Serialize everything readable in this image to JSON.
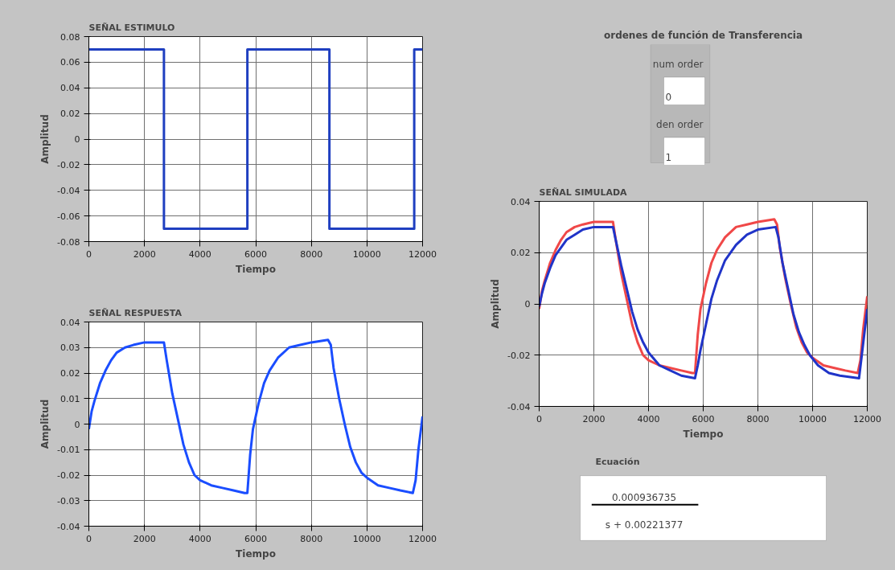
{
  "chart_data": [
    {
      "type": "step",
      "title": "SEÑAL ESTIMULO",
      "xlabel": "Tiempo",
      "ylabel": "Amplitud",
      "xlim": [
        0,
        12000
      ],
      "ylim": [
        -0.08,
        0.08
      ],
      "xticks": [
        0,
        2000,
        4000,
        6000,
        8000,
        10000,
        12000
      ],
      "yticks": [
        -0.08,
        -0.06,
        -0.04,
        -0.02,
        0,
        0.02,
        0.04,
        0.06,
        0.08
      ],
      "grid": true,
      "series": [
        {
          "color": "#1f3fc0",
          "x": [
            0,
            2700,
            2700,
            5700,
            5700,
            8650,
            8650,
            11700,
            11700,
            12000
          ],
          "values": [
            0.07,
            0.07,
            -0.07,
            -0.07,
            0.07,
            0.07,
            -0.07,
            -0.07,
            0.07,
            0.07
          ]
        }
      ]
    },
    {
      "type": "other",
      "title": "ordenes de función de Transferencia",
      "annotations": [
        "num order",
        "0",
        "den order",
        "1"
      ]
    },
    {
      "type": "line",
      "title": "SEÑAL SIMULADA",
      "xlabel": "Tiempo",
      "ylabel": "Amplitud",
      "xlim": [
        0,
        12000
      ],
      "ylim": [
        -0.04,
        0.04
      ],
      "xticks": [
        0,
        2000,
        4000,
        6000,
        8000,
        10000,
        12000
      ],
      "yticks": [
        -0.04,
        -0.02,
        0,
        0.02,
        0.04
      ],
      "grid": true,
      "series": [
        {
          "color": "#f04848",
          "x": [
            0,
            100,
            200,
            400,
            600,
            800,
            1000,
            1300,
            1600,
            2000,
            2400,
            2700,
            2800,
            3000,
            3200,
            3400,
            3600,
            3800,
            4000,
            4400,
            4800,
            5200,
            5600,
            5700,
            5800,
            5900,
            6100,
            6300,
            6500,
            6800,
            7200,
            7600,
            8000,
            8600,
            8700,
            8800,
            9000,
            9200,
            9400,
            9600,
            9800,
            10000,
            10400,
            10800,
            11200,
            11650,
            11750,
            11850,
            12000
          ],
          "values": [
            -0.002,
            0.005,
            0.009,
            0.016,
            0.021,
            0.025,
            0.028,
            0.03,
            0.031,
            0.032,
            0.032,
            0.032,
            0.025,
            0.012,
            0.002,
            -0.008,
            -0.015,
            -0.02,
            -0.022,
            -0.024,
            -0.025,
            -0.026,
            -0.027,
            -0.027,
            -0.012,
            -0.002,
            0.008,
            0.016,
            0.021,
            0.026,
            0.03,
            0.031,
            0.032,
            0.033,
            0.031,
            0.022,
            0.01,
            0.0,
            -0.009,
            -0.015,
            -0.019,
            -0.021,
            -0.024,
            -0.025,
            -0.026,
            -0.027,
            -0.022,
            -0.01,
            0.003
          ]
        },
        {
          "color": "#2034c8",
          "x": [
            0,
            100,
            200,
            400,
            600,
            800,
            1000,
            1300,
            1600,
            2000,
            2400,
            2700,
            2800,
            3000,
            3200,
            3400,
            3600,
            3800,
            4000,
            4400,
            4800,
            5200,
            5700,
            5800,
            5900,
            6100,
            6300,
            6500,
            6800,
            7200,
            7600,
            8000,
            8650,
            8750,
            8900,
            9100,
            9300,
            9500,
            9700,
            9900,
            10200,
            10600,
            11000,
            11700,
            11800,
            11900,
            12000
          ],
          "values": [
            -0.001,
            0.004,
            0.008,
            0.014,
            0.019,
            0.022,
            0.025,
            0.027,
            0.029,
            0.03,
            0.03,
            0.03,
            0.025,
            0.015,
            0.006,
            -0.003,
            -0.01,
            -0.015,
            -0.019,
            -0.024,
            -0.026,
            -0.028,
            -0.029,
            -0.024,
            -0.018,
            -0.008,
            0.002,
            0.009,
            0.017,
            0.023,
            0.027,
            0.029,
            0.03,
            0.026,
            0.016,
            0.006,
            -0.004,
            -0.011,
            -0.016,
            -0.02,
            -0.024,
            -0.027,
            -0.028,
            -0.029,
            -0.02,
            -0.011,
            -0.002
          ]
        }
      ]
    },
    {
      "type": "line",
      "title": "SEÑAL RESPUESTA",
      "xlabel": "Tiempo",
      "ylabel": "Amplitud",
      "xlim": [
        0,
        12000
      ],
      "ylim": [
        -0.04,
        0.04
      ],
      "xticks": [
        0,
        2000,
        4000,
        6000,
        8000,
        10000,
        12000
      ],
      "yticks": [
        -0.04,
        -0.03,
        -0.02,
        -0.01,
        0,
        0.01,
        0.02,
        0.03,
        0.04
      ],
      "grid": true,
      "series": [
        {
          "color": "#1a4dff",
          "x": [
            0,
            100,
            200,
            400,
            600,
            800,
            1000,
            1300,
            1600,
            2000,
            2400,
            2700,
            2800,
            3000,
            3200,
            3400,
            3600,
            3800,
            4000,
            4400,
            4800,
            5200,
            5600,
            5700,
            5800,
            5900,
            6100,
            6300,
            6500,
            6800,
            7200,
            7600,
            8000,
            8600,
            8700,
            8800,
            9000,
            9200,
            9400,
            9600,
            9800,
            10000,
            10400,
            10800,
            11200,
            11650,
            11750,
            11850,
            12000
          ],
          "values": [
            -0.002,
            0.005,
            0.009,
            0.016,
            0.021,
            0.025,
            0.028,
            0.03,
            0.031,
            0.032,
            0.032,
            0.032,
            0.025,
            0.012,
            0.002,
            -0.008,
            -0.015,
            -0.02,
            -0.022,
            -0.024,
            -0.025,
            -0.026,
            -0.027,
            -0.027,
            -0.012,
            -0.002,
            0.008,
            0.016,
            0.021,
            0.026,
            0.03,
            0.031,
            0.032,
            0.033,
            0.031,
            0.022,
            0.01,
            0.0,
            -0.009,
            -0.015,
            -0.019,
            -0.021,
            -0.024,
            -0.025,
            -0.026,
            -0.027,
            -0.022,
            -0.01,
            0.003
          ]
        }
      ]
    },
    {
      "type": "other",
      "title": "Ecuación",
      "annotations": [
        "0.000936735",
        "s + 0.00221377"
      ]
    }
  ]
}
